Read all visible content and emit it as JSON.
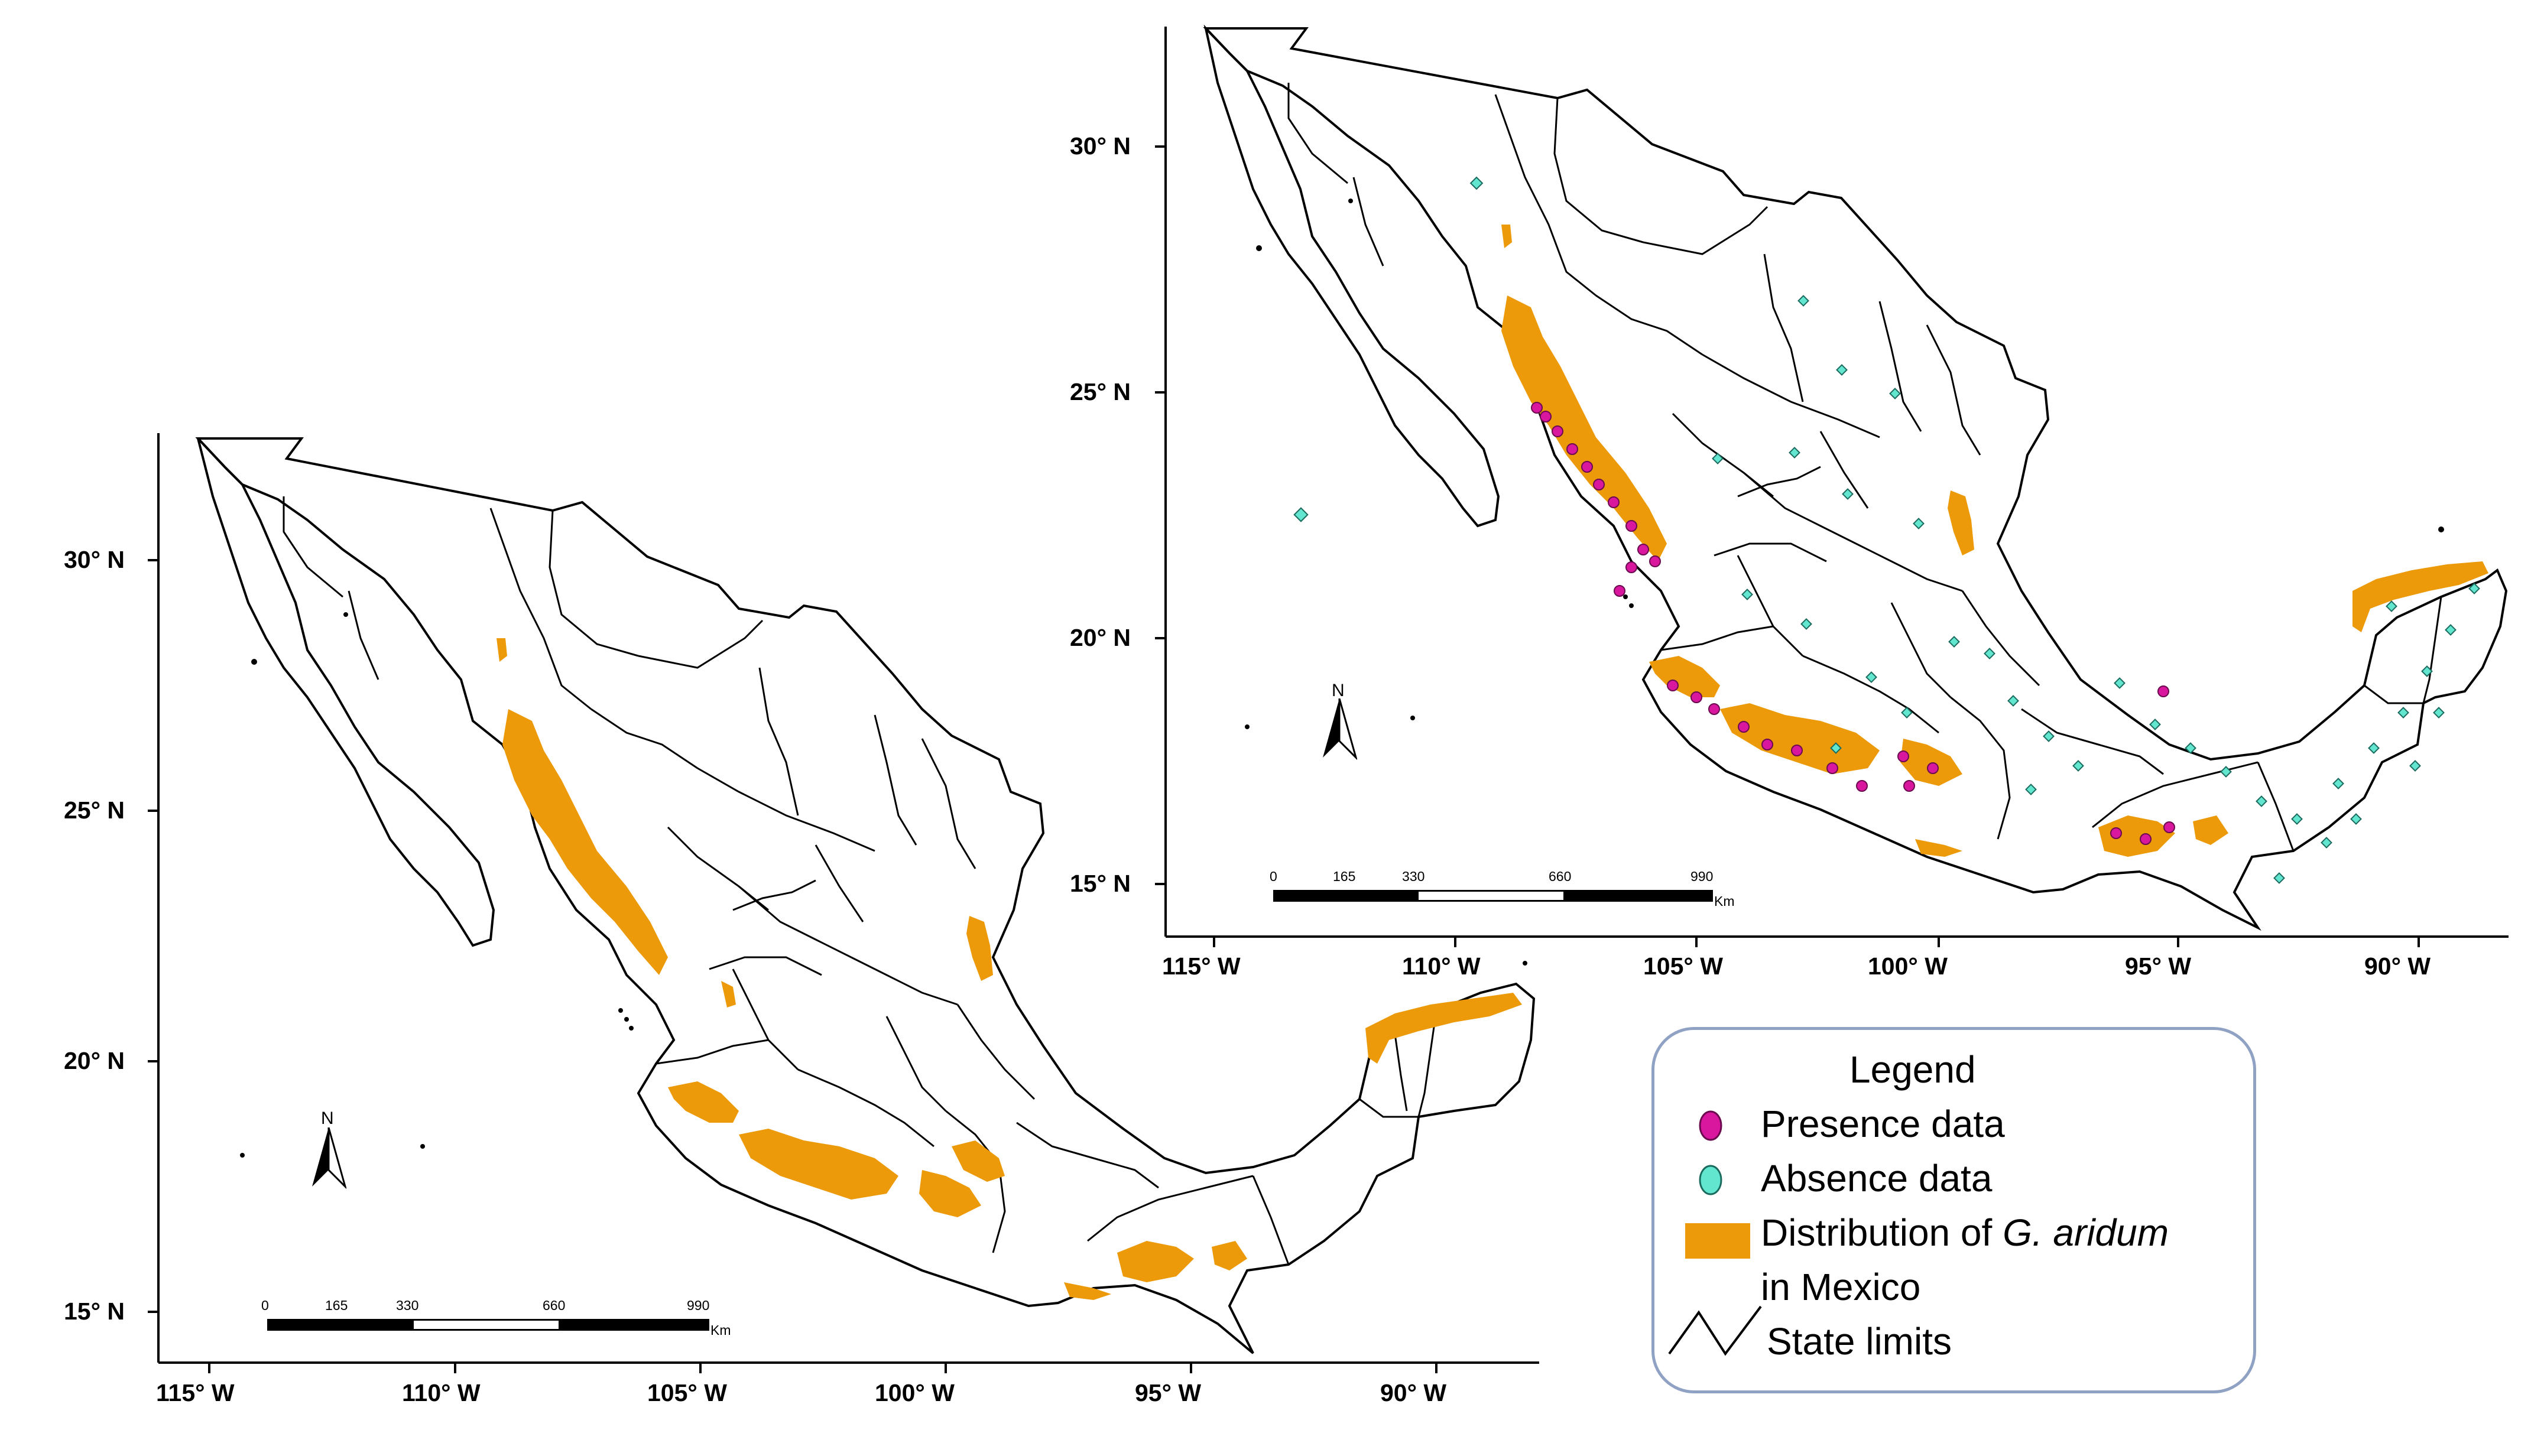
{
  "maps": {
    "left": {
      "lat_ticks": [
        "30° N",
        "25° N",
        "20° N",
        "15° N"
      ],
      "lon_ticks": [
        "115° W",
        "110° W",
        "105° W",
        "100° W",
        "95° W",
        "90° W"
      ],
      "north_arrow": "N",
      "scale_bar": {
        "labels": [
          "0",
          "165",
          "330",
          "660",
          "990"
        ],
        "unit": "Km"
      },
      "layers": [
        "state limits",
        "distribution"
      ]
    },
    "right": {
      "lat_ticks": [
        "30° N",
        "25° N",
        "20° N",
        "15° N"
      ],
      "lon_ticks": [
        "115° W",
        "110° W",
        "105° W",
        "100° W",
        "95° W",
        "90° W"
      ],
      "north_arrow": "N",
      "scale_bar": {
        "labels": [
          "0",
          "165",
          "330",
          "660",
          "990"
        ],
        "unit": "Km"
      },
      "layers": [
        "state limits",
        "distribution",
        "presence points",
        "absence points"
      ]
    }
  },
  "legend": {
    "title": "Legend",
    "items": [
      {
        "label": "Presence data",
        "symbol": "ellipse",
        "color": "#d9169e"
      },
      {
        "label": "Absence data",
        "symbol": "ellipse",
        "color": "#63e6cf"
      },
      {
        "label_prefix": "Distribution of ",
        "label_italic": "G. aridum",
        "label_line2": "in Mexico",
        "symbol": "rectangle",
        "color": "#ec9a0a"
      },
      {
        "label": "State limits",
        "symbol": "line",
        "color": "#000000"
      }
    ]
  },
  "colors": {
    "distribution": "#ec9a0a",
    "presence": "#d9169e",
    "absence": "#63e6cf",
    "legend_border": "#8fa2c4"
  }
}
